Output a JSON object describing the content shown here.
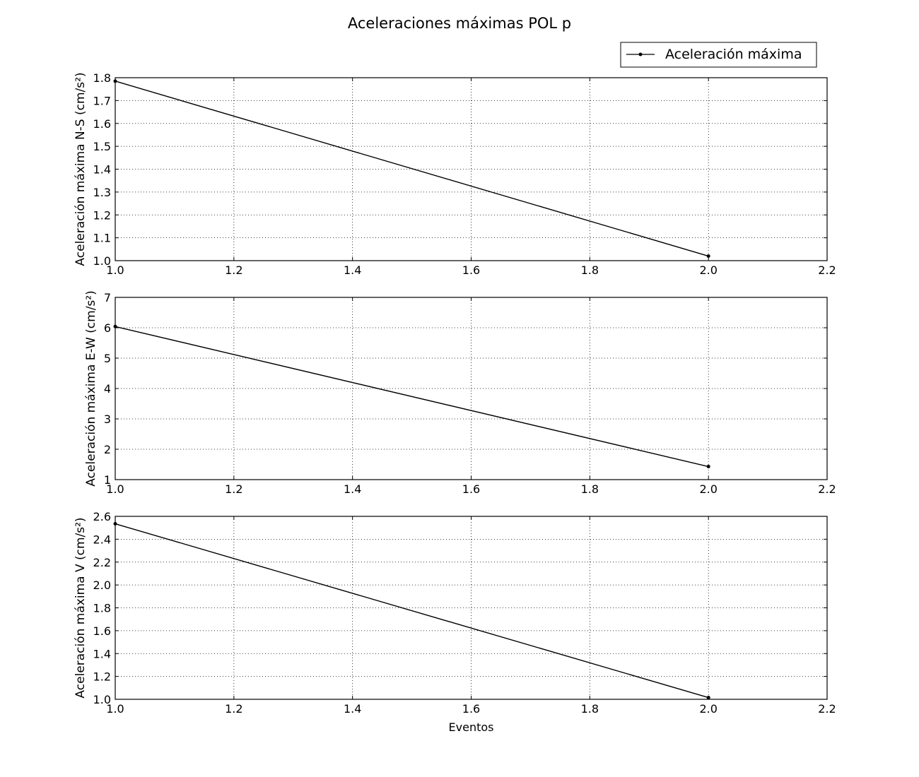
{
  "figure": {
    "title": "Aceleraciones máximas POL p"
  },
  "legend": {
    "label": "Aceleración máxima",
    "placement": "top-right"
  },
  "colors": {
    "line": "#000000",
    "grid": "#000000",
    "background": "#ffffff"
  },
  "chart_data": [
    {
      "type": "line",
      "title": "",
      "xlabel": "",
      "ylabel": "Aceleración máxima N-S (cm/s²)",
      "xlim": [
        1.0,
        2.2
      ],
      "ylim": [
        1.0,
        1.8
      ],
      "xticks": [
        "1.0",
        "1.2",
        "1.4",
        "1.6",
        "1.8",
        "2.0",
        "2.2"
      ],
      "yticks": [
        "1.0",
        "1.1",
        "1.2",
        "1.3",
        "1.4",
        "1.5",
        "1.6",
        "1.7",
        "1.8"
      ],
      "grid": true,
      "series": [
        {
          "name": "Aceleración máxima",
          "x": [
            1,
            2
          ],
          "y": [
            1.785,
            1.02
          ]
        }
      ]
    },
    {
      "type": "line",
      "title": "",
      "xlabel": "",
      "ylabel": "Aceleración máxima E-W (cm/s²)",
      "xlim": [
        1.0,
        2.2
      ],
      "ylim": [
        1,
        7
      ],
      "xticks": [
        "1.0",
        "1.2",
        "1.4",
        "1.6",
        "1.8",
        "2.0",
        "2.2"
      ],
      "yticks": [
        "1",
        "2",
        "3",
        "4",
        "5",
        "6",
        "7"
      ],
      "grid": true,
      "series": [
        {
          "x": [
            1,
            2
          ],
          "y": [
            6.04,
            1.43
          ]
        }
      ]
    },
    {
      "type": "line",
      "title": "",
      "xlabel": "Eventos",
      "ylabel": "Aceleración máxima V (cm/s²)",
      "xlim": [
        1.0,
        2.2
      ],
      "ylim": [
        1.0,
        2.6
      ],
      "xticks": [
        "1.0",
        "1.2",
        "1.4",
        "1.6",
        "1.8",
        "2.0",
        "2.2"
      ],
      "yticks": [
        "1.0",
        "1.2",
        "1.4",
        "1.6",
        "1.8",
        "2.0",
        "2.2",
        "2.4",
        "2.6"
      ],
      "grid": true,
      "series": [
        {
          "x": [
            1,
            2
          ],
          "y": [
            2.535,
            1.015
          ]
        }
      ]
    }
  ]
}
